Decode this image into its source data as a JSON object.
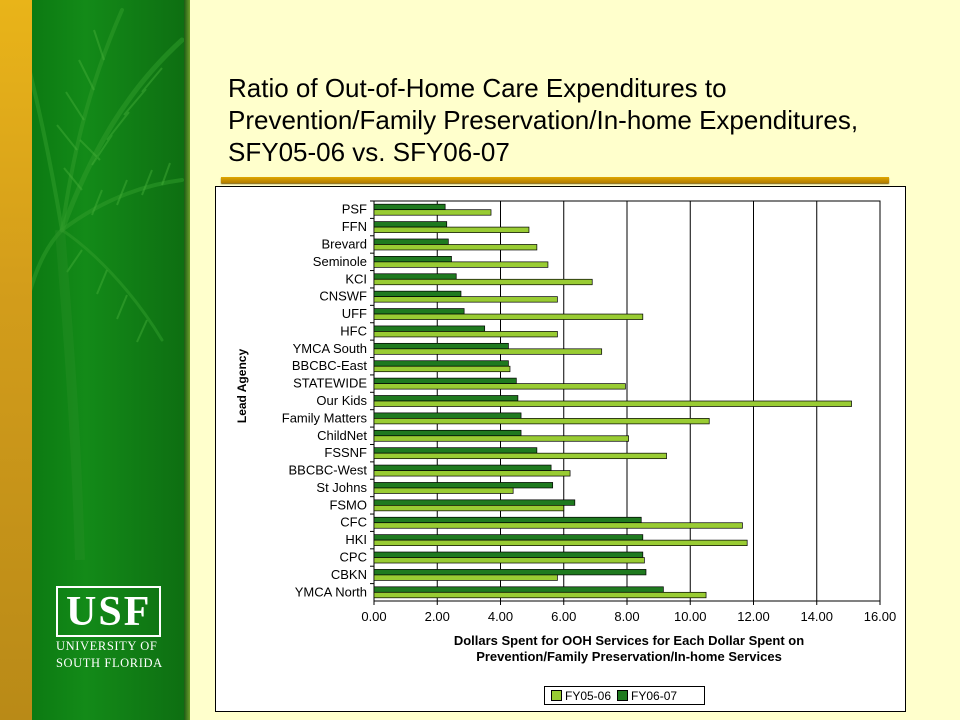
{
  "slide": {
    "title": "Ratio of Out-of-Home Care Expenditures to Prevention/Family Preservation/In-home Expenditures, SFY05-06 vs. SFY06-07",
    "logo": {
      "letters": "USF",
      "line1": "UNIVERSITY OF",
      "line2": "SOUTH FLORIDA"
    }
  },
  "chart_data": {
    "type": "bar",
    "orientation": "horizontal",
    "ylabel": "Lead Agency",
    "xlabel_line1": "Dollars Spent for OOH Services for Each Dollar Spent on",
    "xlabel_line2": "Prevention/Family Preservation/In-home Services",
    "xlim": [
      0,
      16
    ],
    "xticks": [
      "0.00",
      "2.00",
      "4.00",
      "6.00",
      "8.00",
      "10.00",
      "12.00",
      "14.00",
      "16.00"
    ],
    "grid": "vertical",
    "legend_position": "bottom-right",
    "categories": [
      "PSF",
      "FFN",
      "Brevard",
      "Seminole",
      "KCI",
      "CNSWF",
      "UFF",
      "HFC",
      "YMCA South",
      "BBCBC-East",
      "STATEWIDE",
      "Our Kids",
      "Family Matters",
      "ChildNet",
      "FSSNF",
      "BBCBC-West",
      "St Johns",
      "FSMO",
      "CFC",
      "HKI",
      "CPC",
      "CBKN",
      "YMCA North"
    ],
    "series": [
      {
        "name": "FY05-06",
        "color": "#99cc33",
        "values": [
          3.7,
          4.9,
          5.15,
          5.5,
          6.9,
          5.8,
          8.5,
          5.8,
          7.2,
          4.3,
          7.95,
          15.1,
          10.6,
          8.05,
          9.25,
          6.2,
          4.4,
          6.0,
          11.65,
          11.8,
          8.55,
          5.8,
          10.5
        ]
      },
      {
        "name": "FY06-07",
        "color": "#1f7a1f",
        "values": [
          2.25,
          2.3,
          2.35,
          2.45,
          2.6,
          2.75,
          2.85,
          3.5,
          4.25,
          4.25,
          4.5,
          4.55,
          4.65,
          4.65,
          5.15,
          5.6,
          5.65,
          6.35,
          8.45,
          8.5,
          8.5,
          8.6,
          9.15
        ]
      }
    ]
  }
}
